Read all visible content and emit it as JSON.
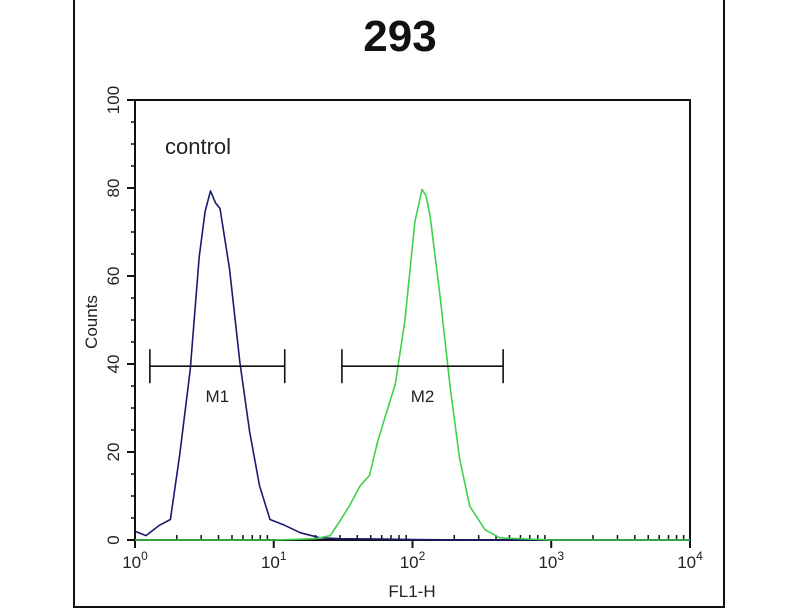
{
  "chart_data": {
    "type": "line",
    "title": "293",
    "xlabel": "FL1-H",
    "ylabel": "Counts",
    "xscale": "log",
    "xlim": [
      1,
      10000
    ],
    "ylim": [
      0,
      100
    ],
    "x_ticks": [
      {
        "base": "10",
        "exp": "0"
      },
      {
        "base": "10",
        "exp": "1"
      },
      {
        "base": "10",
        "exp": "2"
      },
      {
        "base": "10",
        "exp": "3"
      },
      {
        "base": "10",
        "exp": "4"
      }
    ],
    "y_ticks": [
      "0",
      "20",
      "40",
      "60",
      "80",
      "100"
    ],
    "annotation": "control",
    "series": [
      {
        "color": "#1a1a6e",
        "x": [
          1.0,
          1.2,
          1.5,
          1.8,
          2.1,
          2.5,
          2.9,
          3.2,
          3.5,
          3.8,
          4.1,
          4.8,
          5.7,
          6.7,
          7.9,
          9.4,
          12,
          15.5,
          21.5,
          30,
          60,
          100,
          300,
          1000,
          10000
        ],
        "y": [
          2,
          1,
          3,
          5,
          19,
          39,
          64,
          75,
          79,
          77,
          75,
          62,
          40,
          25,
          12,
          5,
          3,
          2,
          0.5,
          0.3,
          0.2,
          0.1,
          0,
          0,
          0
        ]
      },
      {
        "color": "#3fd14a",
        "x": [
          1,
          10,
          20,
          25.5,
          30,
          35,
          42,
          49,
          56,
          63,
          75,
          88,
          104,
          117,
          125,
          134,
          158,
          187,
          219,
          259,
          333,
          426,
          1000,
          10000
        ],
        "y": [
          0,
          0,
          0.3,
          1,
          4,
          8,
          12,
          15,
          22,
          28,
          35,
          50,
          72,
          80,
          78,
          74,
          55,
          35,
          18,
          8,
          2,
          0.5,
          0,
          0
        ]
      }
    ],
    "markers": [
      {
        "label": "M1",
        "range": [
          1.28,
          12
        ],
        "y": 39.5
      },
      {
        "label": "M2",
        "range": [
          31,
          450
        ],
        "y": 39.5
      }
    ]
  }
}
